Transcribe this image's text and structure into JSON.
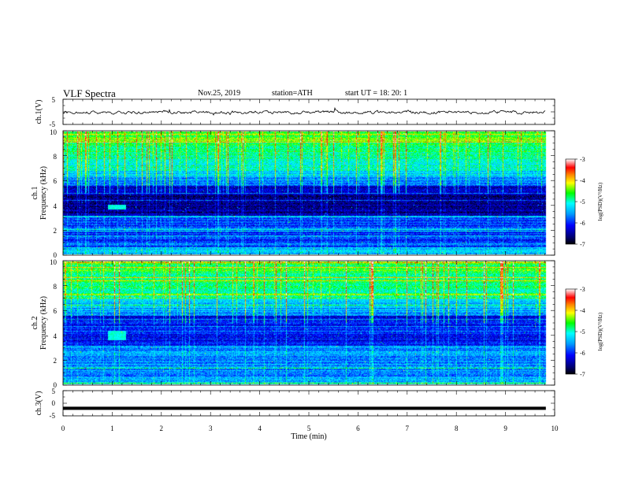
{
  "header": {
    "title": "VLF Spectra",
    "date": "Nov.25, 2019",
    "station": "station=ATH",
    "start": "start  UT  =   18: 20: 1"
  },
  "chart_data": [
    {
      "type": "line",
      "panel": "ch1_waveform",
      "ylabel": "ch.1(V)",
      "yticks": [
        "5",
        "-5"
      ],
      "ylim": [
        -5,
        5
      ],
      "xlim": [
        0,
        10
      ],
      "description_values": {
        "mean_level_v": -0.2,
        "amplitude_v": 0.8,
        "data_end_min": 9.82
      }
    },
    {
      "type": "heatmap",
      "panel": "ch1_spectrogram",
      "ylabel_top": "ch.1",
      "ylabel": "Frequency (kHz)",
      "ylim": [
        0,
        10
      ],
      "yticks": [
        "0",
        "2",
        "4",
        "6",
        "8",
        "10"
      ],
      "xlim": [
        0,
        10
      ],
      "data_end_min": 9.82,
      "colorbar": {
        "label": "log(PSD)(V²/Hz)",
        "range": [
          -7,
          -3
        ],
        "ticks": [
          "-3",
          "-4",
          "-5",
          "-6",
          "-7"
        ]
      },
      "features": {
        "event_start_min": 0.9,
        "event_end_min": 1.28,
        "event_freq_khz": [
          3.7,
          4.1
        ]
      }
    },
    {
      "type": "heatmap",
      "panel": "ch2_spectrogram",
      "ylabel_top": "ch.2",
      "ylabel": "Frequency (kHz)",
      "ylim": [
        0,
        10
      ],
      "yticks": [
        "0",
        "2",
        "4",
        "6",
        "8",
        "10"
      ],
      "xlim": [
        0,
        10
      ],
      "data_end_min": 9.82,
      "colorbar": {
        "label": "log(PSD)(V²/Hz)",
        "range": [
          -7,
          -3
        ],
        "ticks": [
          "-3",
          "-4",
          "-5",
          "-6",
          "-7"
        ]
      },
      "features": {
        "event_start_min": 0.9,
        "event_end_min": 1.28,
        "event_freq_khz": [
          3.6,
          4.4
        ]
      }
    },
    {
      "type": "line",
      "panel": "ch3_waveform",
      "ylabel": "ch.3(V)",
      "yticks": [
        "5",
        "0",
        "-5"
      ],
      "ylim": [
        -5,
        5
      ],
      "xlim": [
        0,
        10
      ],
      "xlabel": "Time (min)",
      "xticks": [
        "0",
        "1",
        "2",
        "3",
        "4",
        "5",
        "6",
        "7",
        "8",
        "9",
        "10"
      ],
      "description_values": {
        "mean_level_v": -2.0,
        "amplitude_v": 0.05,
        "data_end_min": 9.82
      }
    }
  ]
}
